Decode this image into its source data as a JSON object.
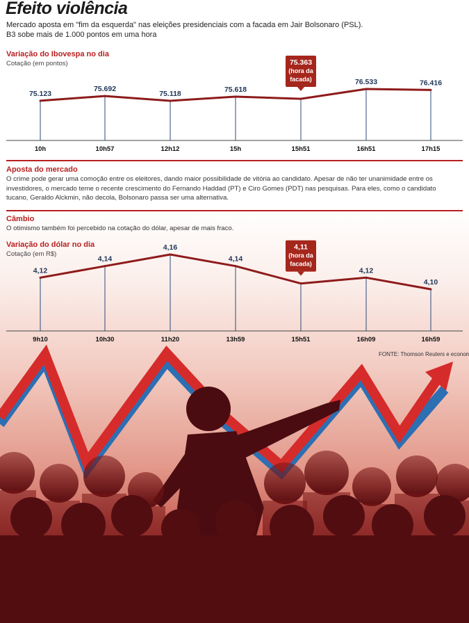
{
  "title": "Efeito violência",
  "subtitle_line1": "Mercado aposta em \"fim da esquerda\" nas eleições presidenciais com a facada em Jair Bolsonaro (PSL).",
  "subtitle_line2": "B3 sobe mais de 1.000 pontos em uma hora",
  "section_aposta": {
    "heading": "Aposta do mercado",
    "text": "O crime pode gerar uma comoção entre os eleitores, dando maior possibilidade de vitória ao candidato. Apesar de não ter unanimidade entre os investidores, o mercado teme o recente crescimento do Fernando Haddad (PT) e Ciro Gomes (PDT) nas pesquisas. Para eles, como o candidato tucano, Geraldo Alckmin, não decola, Bolsonaro passa ser uma alternativa."
  },
  "section_cambio": {
    "heading": "Câmbio",
    "text": "O otimismo também foi percebido na cotação do dólar, apesar de mais fraco."
  },
  "source": "FONTE: Thomson Reuters e economistas",
  "colors": {
    "accent": "#b81f1f",
    "line": "#8e1b1b",
    "stem": "#2b4a7a",
    "callout": "#a5261c"
  },
  "chart_data": [
    {
      "type": "line",
      "title": "Variação do Ibovespa no dia",
      "subtitle": "Cotação (em pontos)",
      "categories": [
        "10h",
        "10h57",
        "12h12",
        "15h",
        "15h51",
        "16h51",
        "17h15"
      ],
      "values": [
        75123,
        75692,
        75118,
        75618,
        75363,
        76533,
        76416
      ],
      "labels": [
        "75.123",
        "75.692",
        "75.118",
        "75.618",
        "75.363",
        "76.533",
        "76.416"
      ],
      "highlight_index": 4,
      "highlight_label": [
        "75.363",
        "(hora da",
        "facada)"
      ]
    },
    {
      "type": "line",
      "title": "Variação do dólar no dia",
      "subtitle": "Cotação (em R$)",
      "categories": [
        "9h10",
        "10h30",
        "11h20",
        "13h59",
        "15h51",
        "16h09",
        "16h59"
      ],
      "values": [
        4.12,
        4.14,
        4.16,
        4.14,
        4.11,
        4.12,
        4.1
      ],
      "labels": [
        "4,12",
        "4,14",
        "4,16",
        "4,14",
        "4,11",
        "4,12",
        "4,10"
      ],
      "highlight_index": 4,
      "highlight_label": [
        "4,11",
        "(hora da",
        "facada)"
      ]
    }
  ]
}
